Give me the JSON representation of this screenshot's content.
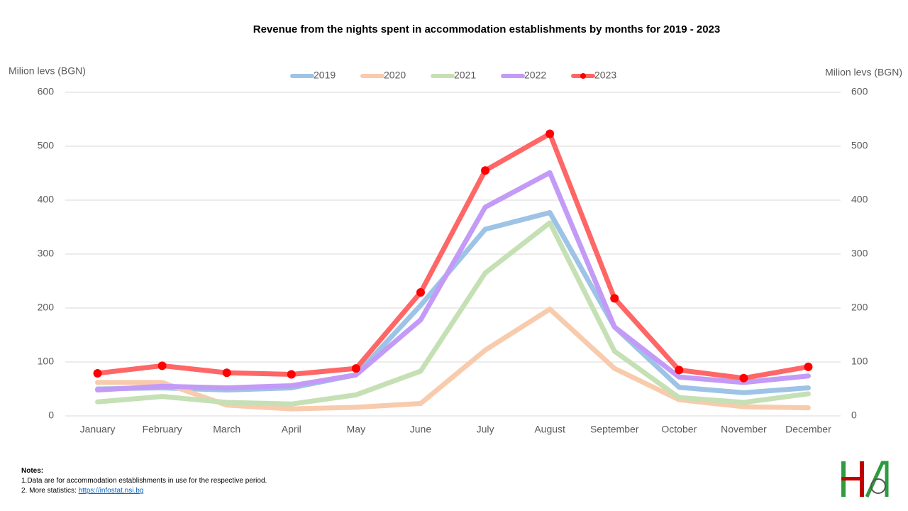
{
  "chart_data": {
    "type": "line",
    "title": "Revenue from the nights spent in accommodation establishments by months for 2019 - 2023",
    "y_label": "Milion levs (BGN)",
    "y2_label": "Milion levs (BGN)",
    "categories": [
      "January",
      "February",
      "March",
      "April",
      "May",
      "June",
      "July",
      "August",
      "September",
      "October",
      "November",
      "December"
    ],
    "series": [
      {
        "name": "2019",
        "color": "#9dc3e6",
        "values": [
          50,
          52,
          48,
          52,
          76,
          205,
          346,
          377,
          165,
          53,
          43,
          52
        ]
      },
      {
        "name": "2020",
        "color": "#f8cbad",
        "values": [
          62,
          62,
          20,
          13,
          16,
          23,
          122,
          198,
          88,
          30,
          17,
          15
        ]
      },
      {
        "name": "2021",
        "color": "#c5e0b4",
        "values": [
          26,
          36,
          25,
          22,
          39,
          83,
          265,
          358,
          120,
          34,
          25,
          41
        ]
      },
      {
        "name": "2022",
        "color": "#c39bf7",
        "values": [
          48,
          55,
          52,
          56,
          76,
          178,
          387,
          451,
          165,
          72,
          62,
          74
        ]
      },
      {
        "name": "2023",
        "color": "#ff6666",
        "marker_color": "#ff0000",
        "markers": true,
        "values": [
          79,
          93,
          80,
          77,
          88,
          229,
          455,
          523,
          218,
          85,
          70,
          91
        ]
      }
    ],
    "ylim": [
      0,
      600
    ],
    "yticks": [
      0,
      100,
      200,
      300,
      400,
      500,
      600
    ],
    "y2lim": [
      0,
      600
    ],
    "y2ticks": [
      0,
      100,
      200,
      300,
      400,
      500,
      600
    ],
    "grid": true,
    "legend": "top"
  },
  "notes": {
    "title": "Notes:",
    "line1": "1.Data are for accommodation establishments in use for the respective period.",
    "line2": "2. More statistics:",
    "link": "https://infostat.nsi.bg"
  }
}
